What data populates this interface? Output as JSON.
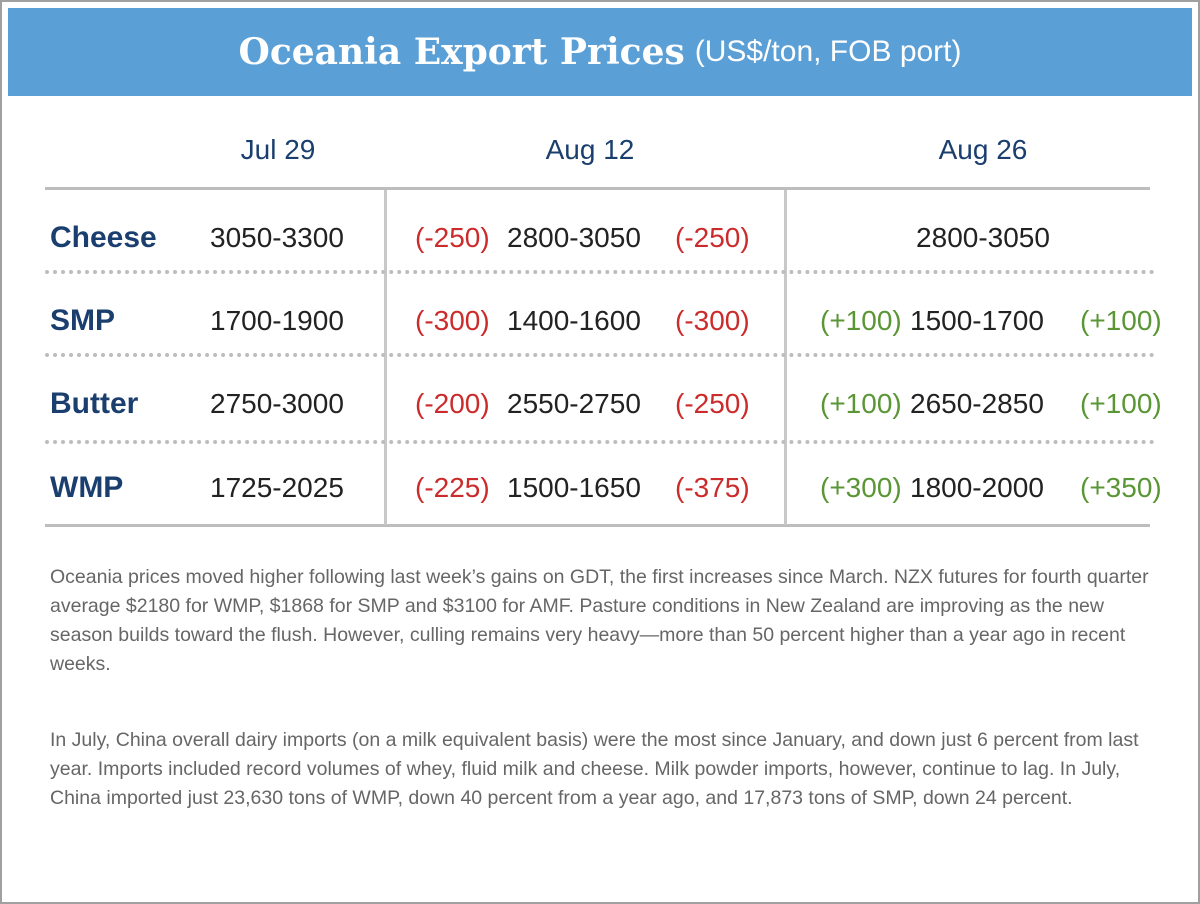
{
  "header": {
    "title": "Oceania Export Prices",
    "subtitle": "(US$/ton, FOB port)"
  },
  "table": {
    "columns": [
      "Jul 29",
      "Aug 12",
      "Aug 26"
    ],
    "rows": [
      {
        "product": "Cheese",
        "jul29": "3050-3300",
        "aug12": {
          "change_before": "(-250)",
          "range": "2800-3050",
          "change_after": "(-250)"
        },
        "aug26": {
          "range": "2800-3050"
        }
      },
      {
        "product": "SMP",
        "jul29": "1700-1900",
        "aug12": {
          "change_before": "(-300)",
          "range": "1400-1600",
          "change_after": "(-300)"
        },
        "aug26": {
          "change_before": "(+100)",
          "range": "1500-1700",
          "change_after": "(+100)"
        }
      },
      {
        "product": "Butter",
        "jul29": "2750-3000",
        "aug12": {
          "change_before": "(-200)",
          "range": "2550-2750",
          "change_after": "(-250)"
        },
        "aug26": {
          "change_before": "(+100)",
          "range": "2650-2850",
          "change_after": "(+100)"
        }
      },
      {
        "product": "WMP",
        "jul29": "1725-2025",
        "aug12": {
          "change_before": "(-225)",
          "range": "1500-1650",
          "change_after": "(-375)"
        },
        "aug26": {
          "change_before": "(+300)",
          "range": "1800-2000",
          "change_after": "(+350)"
        }
      }
    ]
  },
  "paragraphs": [
    "Oceania prices moved higher following last week’s gains on GDT, the first increases since March. NZX futures for fourth quarter average $2180 for WMP, $1868 for SMP and $3100 for AMF. Pasture conditions in New Zealand are improving as the new season builds toward the flush. However, culling remains very heavy—more than 50 percent higher than a year ago in recent weeks.",
    "In July, China overall dairy imports (on a milk equivalent basis) were the most since January, and down just 6 percent from last year. Imports included record volumes of whey, fluid milk and cheese. Milk powder imports, however, continue to lag. In July, China imported just 23,630 tons of WMP, down 40 percent from a year ago, and 17,873 tons of SMP, down 24 percent."
  ]
}
